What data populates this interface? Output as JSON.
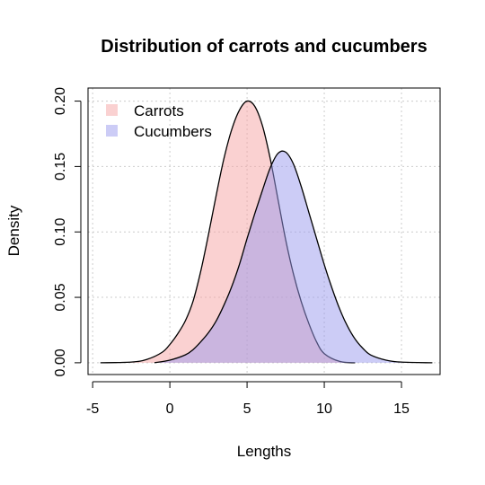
{
  "chart_data": {
    "type": "area",
    "title": "Distribution of carrots and cucumbers",
    "xlabel": "Lengths",
    "ylabel": "Density",
    "xlim": [
      -5.3,
      17.5
    ],
    "ylim": [
      -0.009,
      0.21
    ],
    "xticks": [
      -5,
      0,
      5,
      10,
      15
    ],
    "xtick_labels": [
      "-5",
      "0",
      "5",
      "10",
      "15"
    ],
    "yticks": [
      0.0,
      0.05,
      0.1,
      0.15,
      0.2
    ],
    "ytick_labels": [
      "0.00",
      "0.05",
      "0.10",
      "0.15",
      "0.20"
    ],
    "grid": true,
    "legend_position": "top-left",
    "series": [
      {
        "name": "Carrots",
        "fill": "#f5a3a3",
        "opacity": 0.5,
        "x": [
          -4.5,
          -2.5,
          -1.5,
          -0.5,
          0,
          0.5,
          1,
          1.5,
          2,
          2.5,
          3,
          3.5,
          4,
          4.5,
          5,
          5.5,
          6,
          6.5,
          7,
          7.5,
          8,
          8.5,
          9,
          9.5,
          10,
          11,
          12
        ],
        "y": [
          0.0,
          0.0005,
          0.0025,
          0.008,
          0.014,
          0.022,
          0.032,
          0.047,
          0.07,
          0.098,
          0.128,
          0.156,
          0.178,
          0.193,
          0.2,
          0.196,
          0.181,
          0.156,
          0.125,
          0.094,
          0.068,
          0.047,
          0.03,
          0.016,
          0.007,
          0.001,
          0.0
        ]
      },
      {
        "name": "Cucumbers",
        "fill": "#9999ee",
        "opacity": 0.5,
        "x": [
          -1,
          0,
          1,
          1.5,
          2,
          2.5,
          3,
          3.5,
          4,
          4.5,
          5,
          5.5,
          6,
          6.5,
          7,
          7.5,
          8,
          8.5,
          9,
          9.5,
          10,
          10.5,
          11,
          11.5,
          12,
          12.5,
          13,
          14,
          15,
          17
        ],
        "y": [
          0.0,
          0.002,
          0.006,
          0.01,
          0.016,
          0.023,
          0.032,
          0.044,
          0.058,
          0.075,
          0.095,
          0.114,
          0.132,
          0.149,
          0.16,
          0.161,
          0.152,
          0.135,
          0.115,
          0.095,
          0.075,
          0.057,
          0.041,
          0.028,
          0.018,
          0.011,
          0.006,
          0.002,
          0.0005,
          0.0
        ]
      }
    ]
  }
}
